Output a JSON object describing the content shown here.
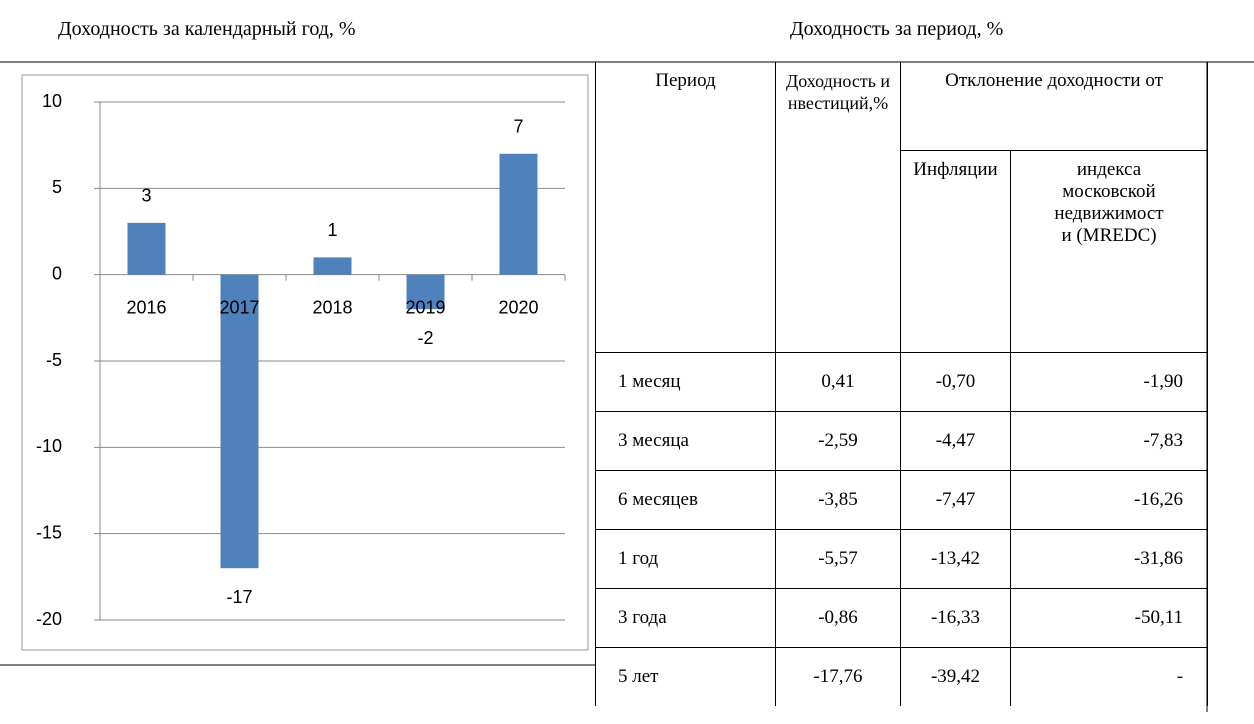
{
  "chart_data": {
    "type": "bar",
    "title": "Доходность за календарный год, %",
    "categories": [
      "2016",
      "2017",
      "2018",
      "2019",
      "2020"
    ],
    "values": [
      3,
      -17,
      1,
      -2,
      7
    ],
    "color": "#4f81bd",
    "ylim": [
      -20,
      10
    ],
    "yticks": [
      -20,
      -15,
      -10,
      -5,
      0,
      5,
      10
    ],
    "grid": true
  },
  "table": {
    "title": "Доходность за период, %",
    "header": {
      "period": "Период",
      "yield": "Доходность инвестиций,%",
      "deviation": "Отклонение доходности от",
      "inflation": "Инфляции",
      "index": "индекса московской недвижимости (MREDC)"
    },
    "rows": [
      [
        "1 месяц",
        "0,41",
        "-0,70",
        "-1,90"
      ],
      [
        "3 месяца",
        "-2,59",
        "-4,47",
        "-7,83"
      ],
      [
        "6 месяцев",
        "-3,85",
        "-7,47",
        "-16,26"
      ],
      [
        "1 год",
        "-5,57",
        "-13,42",
        "-31,86"
      ],
      [
        "3 года",
        "-0,86",
        "-16,33",
        "-50,11"
      ],
      [
        "5 лет",
        "-17,76",
        "-39,42",
        "-"
      ]
    ]
  }
}
